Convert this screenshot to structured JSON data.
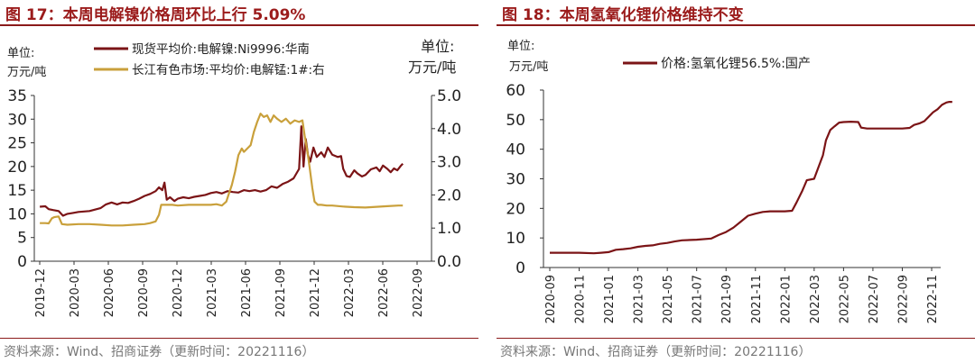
{
  "chart_data": [
    {
      "id": "left",
      "type": "line",
      "title": "图 17：本周电解镍价格周环比上行 5.09%",
      "source": "资料来源：Wind、招商证券（更新时间：20221116）",
      "y_left": {
        "unit": [
          "单位:",
          "万元/吨"
        ],
        "lim": [
          0,
          35
        ],
        "ticks": [
          "0",
          "5",
          "10",
          "15",
          "20",
          "25",
          "30",
          "35"
        ]
      },
      "y_right": {
        "unit": [
          "单位:",
          "万元/吨"
        ],
        "lim": [
          0,
          5
        ],
        "ticks": [
          "0.0",
          "1.0",
          "2.0",
          "3.0",
          "4.0",
          "5.0"
        ]
      },
      "x_ticks": [
        "2019-12",
        "2020-03",
        "2020-06",
        "2020-09",
        "2020-12",
        "2021-03",
        "2021-06",
        "2021-09",
        "2021-12",
        "2022-03",
        "2022-06",
        "2022-09"
      ],
      "x_lim": [
        0,
        36
      ],
      "series": [
        {
          "name": "现货平均价:电解镍:Ni9996:华南",
          "axis": "left",
          "color": "#7b1416",
          "points": [
            [
              0.5,
              11.5
            ],
            [
              1,
              11.6
            ],
            [
              1.3,
              11.0
            ],
            [
              1.7,
              10.8
            ],
            [
              2.2,
              10.6
            ],
            [
              2.6,
              9.6
            ],
            [
              3,
              10.0
            ],
            [
              3.5,
              10.2
            ],
            [
              4,
              10.4
            ],
            [
              4.5,
              10.5
            ],
            [
              5,
              10.6
            ],
            [
              5.5,
              10.9
            ],
            [
              6,
              11.2
            ],
            [
              6.5,
              12.0
            ],
            [
              7,
              12.4
            ],
            [
              7.5,
              12.0
            ],
            [
              8,
              12.4
            ],
            [
              8.5,
              12.3
            ],
            [
              9,
              12.7
            ],
            [
              9.5,
              13.2
            ],
            [
              10,
              13.8
            ],
            [
              10.5,
              14.2
            ],
            [
              11,
              14.8
            ],
            [
              11.3,
              15.6
            ],
            [
              11.6,
              15.0
            ],
            [
              11.8,
              16.6
            ],
            [
              12,
              13.0
            ],
            [
              12.3,
              13.5
            ],
            [
              12.7,
              12.7
            ],
            [
              13,
              13.2
            ],
            [
              13.5,
              13.5
            ],
            [
              14,
              13.3
            ],
            [
              14.5,
              13.6
            ],
            [
              15,
              13.8
            ],
            [
              15.5,
              14.0
            ],
            [
              16,
              14.4
            ],
            [
              16.5,
              14.6
            ],
            [
              17,
              14.3
            ],
            [
              17.5,
              14.8
            ],
            [
              18,
              14.6
            ],
            [
              18.5,
              14.5
            ],
            [
              19,
              15.0
            ],
            [
              19.5,
              14.8
            ],
            [
              20,
              15.0
            ],
            [
              20.5,
              14.7
            ],
            [
              21,
              15.0
            ],
            [
              21.5,
              15.8
            ],
            [
              22,
              15.5
            ],
            [
              22.5,
              16.3
            ],
            [
              23,
              16.8
            ],
            [
              23.5,
              17.5
            ],
            [
              24,
              19.5
            ],
            [
              24.2,
              28.5
            ],
            [
              24.4,
              20.0
            ],
            [
              24.6,
              25.8
            ],
            [
              24.8,
              22.5
            ],
            [
              25,
              21.0
            ],
            [
              25.3,
              24.0
            ],
            [
              25.6,
              22.0
            ],
            [
              26,
              23.0
            ],
            [
              26.3,
              22.0
            ],
            [
              26.6,
              24.0
            ],
            [
              27,
              22.5
            ],
            [
              27.5,
              22.0
            ],
            [
              27.8,
              22.2
            ],
            [
              28,
              19.5
            ],
            [
              28.3,
              18.0
            ],
            [
              28.6,
              17.8
            ],
            [
              29,
              19.2
            ],
            [
              29.3,
              18.5
            ],
            [
              29.7,
              17.9
            ],
            [
              30,
              18.2
            ],
            [
              30.5,
              19.4
            ],
            [
              31,
              19.8
            ],
            [
              31.3,
              19.0
            ],
            [
              31.6,
              20.2
            ],
            [
              32,
              19.5
            ],
            [
              32.3,
              18.8
            ],
            [
              32.6,
              19.6
            ],
            [
              32.9,
              19.2
            ],
            [
              33.2,
              20.1
            ],
            [
              33.4,
              20.6
            ]
          ]
        },
        {
          "name": "长江有色市场:平均价:电解锰:1#:右",
          "axis": "right",
          "color": "#c9a03b",
          "points": [
            [
              0.5,
              1.15
            ],
            [
              1,
              1.15
            ],
            [
              1.3,
              1.14
            ],
            [
              1.6,
              1.3
            ],
            [
              1.8,
              1.33
            ],
            [
              2.2,
              1.35
            ],
            [
              2.5,
              1.12
            ],
            [
              3,
              1.1
            ],
            [
              4,
              1.12
            ],
            [
              5,
              1.12
            ],
            [
              6,
              1.1
            ],
            [
              7,
              1.08
            ],
            [
              8,
              1.08
            ],
            [
              9,
              1.1
            ],
            [
              10,
              1.12
            ],
            [
              10.5,
              1.15
            ],
            [
              11,
              1.2
            ],
            [
              11.3,
              1.4
            ],
            [
              11.5,
              1.7
            ],
            [
              12,
              1.7
            ],
            [
              12.5,
              1.7
            ],
            [
              13,
              1.68
            ],
            [
              14,
              1.7
            ],
            [
              15,
              1.7
            ],
            [
              16,
              1.7
            ],
            [
              16.5,
              1.72
            ],
            [
              17,
              1.68
            ],
            [
              17.4,
              1.8
            ],
            [
              17.6,
              2.0
            ],
            [
              17.9,
              2.3
            ],
            [
              18.2,
              2.7
            ],
            [
              18.5,
              3.2
            ],
            [
              18.8,
              3.4
            ],
            [
              19,
              3.3
            ],
            [
              19.3,
              3.4
            ],
            [
              19.6,
              3.5
            ],
            [
              19.9,
              3.9
            ],
            [
              20.2,
              4.2
            ],
            [
              20.5,
              4.45
            ],
            [
              20.8,
              4.35
            ],
            [
              21.1,
              4.4
            ],
            [
              21.4,
              4.2
            ],
            [
              21.7,
              4.4
            ],
            [
              22,
              4.3
            ],
            [
              22.4,
              4.2
            ],
            [
              22.8,
              4.3
            ],
            [
              23.2,
              4.15
            ],
            [
              23.6,
              4.25
            ],
            [
              24,
              4.2
            ],
            [
              24.3,
              4.25
            ],
            [
              24.5,
              3.8
            ],
            [
              24.8,
              3.2
            ],
            [
              25,
              2.7
            ],
            [
              25.2,
              2.2
            ],
            [
              25.4,
              1.8
            ],
            [
              25.7,
              1.7
            ],
            [
              26,
              1.7
            ],
            [
              26.5,
              1.68
            ],
            [
              27,
              1.68
            ],
            [
              28,
              1.65
            ],
            [
              29,
              1.63
            ],
            [
              30,
              1.62
            ],
            [
              31,
              1.64
            ],
            [
              32,
              1.66
            ],
            [
              33,
              1.68
            ],
            [
              33.4,
              1.68
            ]
          ]
        }
      ]
    },
    {
      "id": "right",
      "type": "line",
      "title": "图 18：本周氢氧化锂价格维持不变",
      "source": "资料来源：Wind、招商证券（更新时间：20221116）",
      "y_left": {
        "unit": [
          "单位:",
          "万元/吨"
        ],
        "lim": [
          0,
          60
        ],
        "ticks": [
          "0",
          "10",
          "20",
          "30",
          "40",
          "50",
          "60"
        ]
      },
      "x_ticks": [
        "2020-09",
        "2020-11",
        "2021-01",
        "2021-03",
        "2021-05",
        "2021-07",
        "2021-09",
        "2021-11",
        "2022-01",
        "2022-03",
        "2022-05",
        "2022-07",
        "2022-09",
        "2022-11"
      ],
      "x_lim": [
        0,
        26.5
      ],
      "series": [
        {
          "name": "价格:氢氧化锂56.5%:国产",
          "axis": "left",
          "color": "#7b1416",
          "points": [
            [
              0,
              5.0
            ],
            [
              1,
              5.0
            ],
            [
              2,
              5.0
            ],
            [
              3,
              4.8
            ],
            [
              3.5,
              5.0
            ],
            [
              4,
              5.2
            ],
            [
              4.5,
              6.0
            ],
            [
              5,
              6.2
            ],
            [
              5.5,
              6.5
            ],
            [
              6,
              7.0
            ],
            [
              6.5,
              7.3
            ],
            [
              7,
              7.5
            ],
            [
              7.5,
              8.0
            ],
            [
              8,
              8.3
            ],
            [
              8.5,
              8.8
            ],
            [
              9,
              9.2
            ],
            [
              10,
              9.4
            ],
            [
              11,
              9.8
            ],
            [
              11.5,
              11.0
            ],
            [
              12,
              12.0
            ],
            [
              12.5,
              13.5
            ],
            [
              13,
              15.5
            ],
            [
              13.5,
              17.5
            ],
            [
              14,
              18.2
            ],
            [
              14.5,
              18.8
            ],
            [
              15,
              19.0
            ],
            [
              15.5,
              19.0
            ],
            [
              16,
              19.0
            ],
            [
              16.5,
              19.2
            ],
            [
              16.8,
              22.0
            ],
            [
              17.2,
              26.0
            ],
            [
              17.5,
              29.5
            ],
            [
              18,
              30.0
            ],
            [
              18.3,
              34.0
            ],
            [
              18.6,
              38.0
            ],
            [
              18.8,
              43.0
            ],
            [
              19.1,
              46.5
            ],
            [
              19.4,
              47.8
            ],
            [
              19.7,
              49.0
            ],
            [
              20,
              49.2
            ],
            [
              20.5,
              49.3
            ],
            [
              21,
              49.2
            ],
            [
              21.2,
              47.3
            ],
            [
              21.6,
              47.0
            ],
            [
              22,
              47.0
            ],
            [
              23,
              47.0
            ],
            [
              24,
              47.0
            ],
            [
              24.5,
              47.2
            ],
            [
              24.8,
              48.2
            ],
            [
              25.2,
              48.8
            ],
            [
              25.5,
              49.5
            ],
            [
              25.8,
              51.0
            ],
            [
              26.1,
              52.5
            ],
            [
              26.4,
              53.5
            ],
            [
              26.7,
              55.0
            ],
            [
              27,
              55.8
            ],
            [
              27.2,
              56.0
            ],
            [
              27.4,
              56.0
            ]
          ]
        }
      ]
    }
  ]
}
